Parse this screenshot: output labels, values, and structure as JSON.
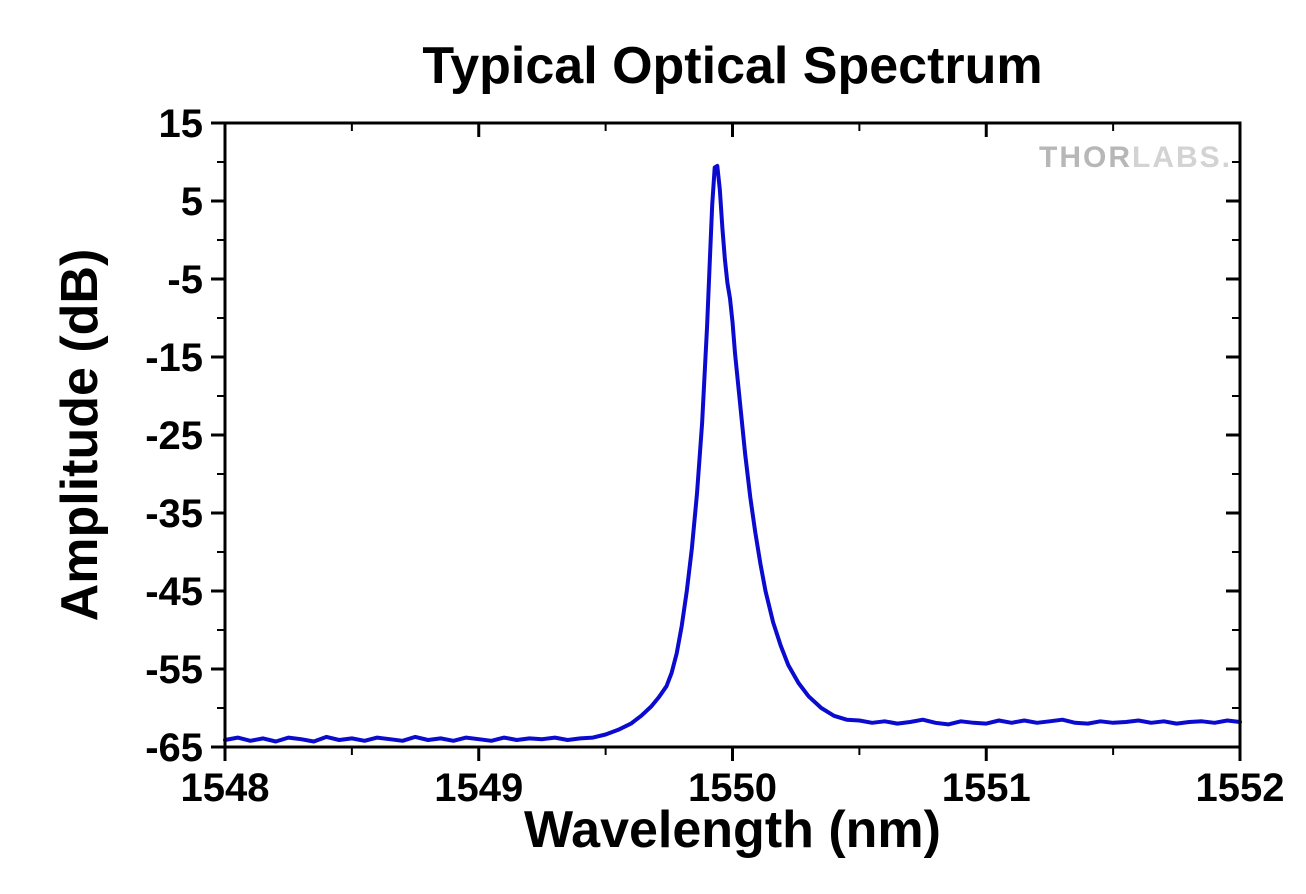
{
  "chart_data": {
    "type": "line",
    "title": "Typical Optical Spectrum",
    "xlabel": "Wavelength (nm)",
    "ylabel": "Amplitude (dB)",
    "xlim": [
      1548,
      1552
    ],
    "ylim": [
      -65,
      15
    ],
    "x_major_ticks": [
      1548,
      1549,
      1550,
      1551,
      1552
    ],
    "x_minor_ticks": [
      1548.5,
      1549.5,
      1550.5,
      1551.5
    ],
    "y_major_ticks": [
      15,
      5,
      -5,
      -15,
      -25,
      -35,
      -45,
      -55,
      -65
    ],
    "y_minor_ticks": [
      10,
      0,
      -10,
      -20,
      -30,
      -40,
      -50,
      -60
    ],
    "grid": false,
    "legend": null,
    "line_color": "#0b0bd0",
    "frame_color": "#000000",
    "watermark": {
      "text_primary": "THOR",
      "text_secondary": "LABS.",
      "color_primary": "#b7b7b7",
      "color_secondary": "#d3d3d3"
    },
    "series": [
      {
        "name": "optical spectrum",
        "points": [
          [
            1548.0,
            -64.1
          ],
          [
            1548.05,
            -63.8
          ],
          [
            1548.1,
            -64.2
          ],
          [
            1548.15,
            -63.9
          ],
          [
            1548.2,
            -64.3
          ],
          [
            1548.25,
            -63.8
          ],
          [
            1548.3,
            -64.0
          ],
          [
            1548.35,
            -64.3
          ],
          [
            1548.4,
            -63.7
          ],
          [
            1548.45,
            -64.1
          ],
          [
            1548.5,
            -63.9
          ],
          [
            1548.55,
            -64.2
          ],
          [
            1548.6,
            -63.8
          ],
          [
            1548.65,
            -64.0
          ],
          [
            1548.7,
            -64.2
          ],
          [
            1548.75,
            -63.7
          ],
          [
            1548.8,
            -64.1
          ],
          [
            1548.85,
            -63.9
          ],
          [
            1548.9,
            -64.2
          ],
          [
            1548.95,
            -63.8
          ],
          [
            1549.0,
            -64.0
          ],
          [
            1549.05,
            -64.2
          ],
          [
            1549.1,
            -63.8
          ],
          [
            1549.15,
            -64.1
          ],
          [
            1549.2,
            -63.9
          ],
          [
            1549.25,
            -64.0
          ],
          [
            1549.3,
            -63.8
          ],
          [
            1549.35,
            -64.1
          ],
          [
            1549.4,
            -63.9
          ],
          [
            1549.45,
            -63.8
          ],
          [
            1549.5,
            -63.4
          ],
          [
            1549.55,
            -62.8
          ],
          [
            1549.6,
            -62.0
          ],
          [
            1549.64,
            -61.0
          ],
          [
            1549.68,
            -59.8
          ],
          [
            1549.71,
            -58.6
          ],
          [
            1549.74,
            -57.2
          ],
          [
            1549.76,
            -55.5
          ],
          [
            1549.78,
            -53.0
          ],
          [
            1549.8,
            -49.5
          ],
          [
            1549.82,
            -45.0
          ],
          [
            1549.84,
            -39.5
          ],
          [
            1549.86,
            -32.5
          ],
          [
            1549.88,
            -23.5
          ],
          [
            1549.9,
            -11.0
          ],
          [
            1549.91,
            -3.0
          ],
          [
            1549.92,
            4.5
          ],
          [
            1549.93,
            9.3
          ],
          [
            1549.94,
            9.5
          ],
          [
            1549.95,
            6.5
          ],
          [
            1549.96,
            1.5
          ],
          [
            1549.97,
            -2.5
          ],
          [
            1549.98,
            -5.5
          ],
          [
            1549.99,
            -7.5
          ],
          [
            1550.0,
            -10.5
          ],
          [
            1550.01,
            -14.5
          ],
          [
            1550.03,
            -21.0
          ],
          [
            1550.05,
            -27.5
          ],
          [
            1550.07,
            -33.0
          ],
          [
            1550.09,
            -37.5
          ],
          [
            1550.11,
            -41.5
          ],
          [
            1550.13,
            -45.0
          ],
          [
            1550.16,
            -49.0
          ],
          [
            1550.19,
            -52.0
          ],
          [
            1550.22,
            -54.5
          ],
          [
            1550.26,
            -56.8
          ],
          [
            1550.3,
            -58.5
          ],
          [
            1550.35,
            -60.0
          ],
          [
            1550.4,
            -61.0
          ],
          [
            1550.45,
            -61.5
          ],
          [
            1550.5,
            -61.6
          ],
          [
            1550.55,
            -61.9
          ],
          [
            1550.6,
            -61.7
          ],
          [
            1550.65,
            -62.0
          ],
          [
            1550.7,
            -61.8
          ],
          [
            1550.75,
            -61.5
          ],
          [
            1550.8,
            -61.9
          ],
          [
            1550.85,
            -62.1
          ],
          [
            1550.9,
            -61.7
          ],
          [
            1550.95,
            -61.9
          ],
          [
            1551.0,
            -62.0
          ],
          [
            1551.05,
            -61.6
          ],
          [
            1551.1,
            -61.9
          ],
          [
            1551.15,
            -61.6
          ],
          [
            1551.2,
            -61.9
          ],
          [
            1551.25,
            -61.7
          ],
          [
            1551.3,
            -61.5
          ],
          [
            1551.35,
            -61.9
          ],
          [
            1551.4,
            -62.0
          ],
          [
            1551.45,
            -61.7
          ],
          [
            1551.5,
            -61.9
          ],
          [
            1551.55,
            -61.8
          ],
          [
            1551.6,
            -61.6
          ],
          [
            1551.65,
            -61.9
          ],
          [
            1551.7,
            -61.7
          ],
          [
            1551.75,
            -62.0
          ],
          [
            1551.8,
            -61.8
          ],
          [
            1551.85,
            -61.7
          ],
          [
            1551.9,
            -61.9
          ],
          [
            1551.95,
            -61.6
          ],
          [
            1552.0,
            -61.8
          ]
        ]
      }
    ]
  }
}
